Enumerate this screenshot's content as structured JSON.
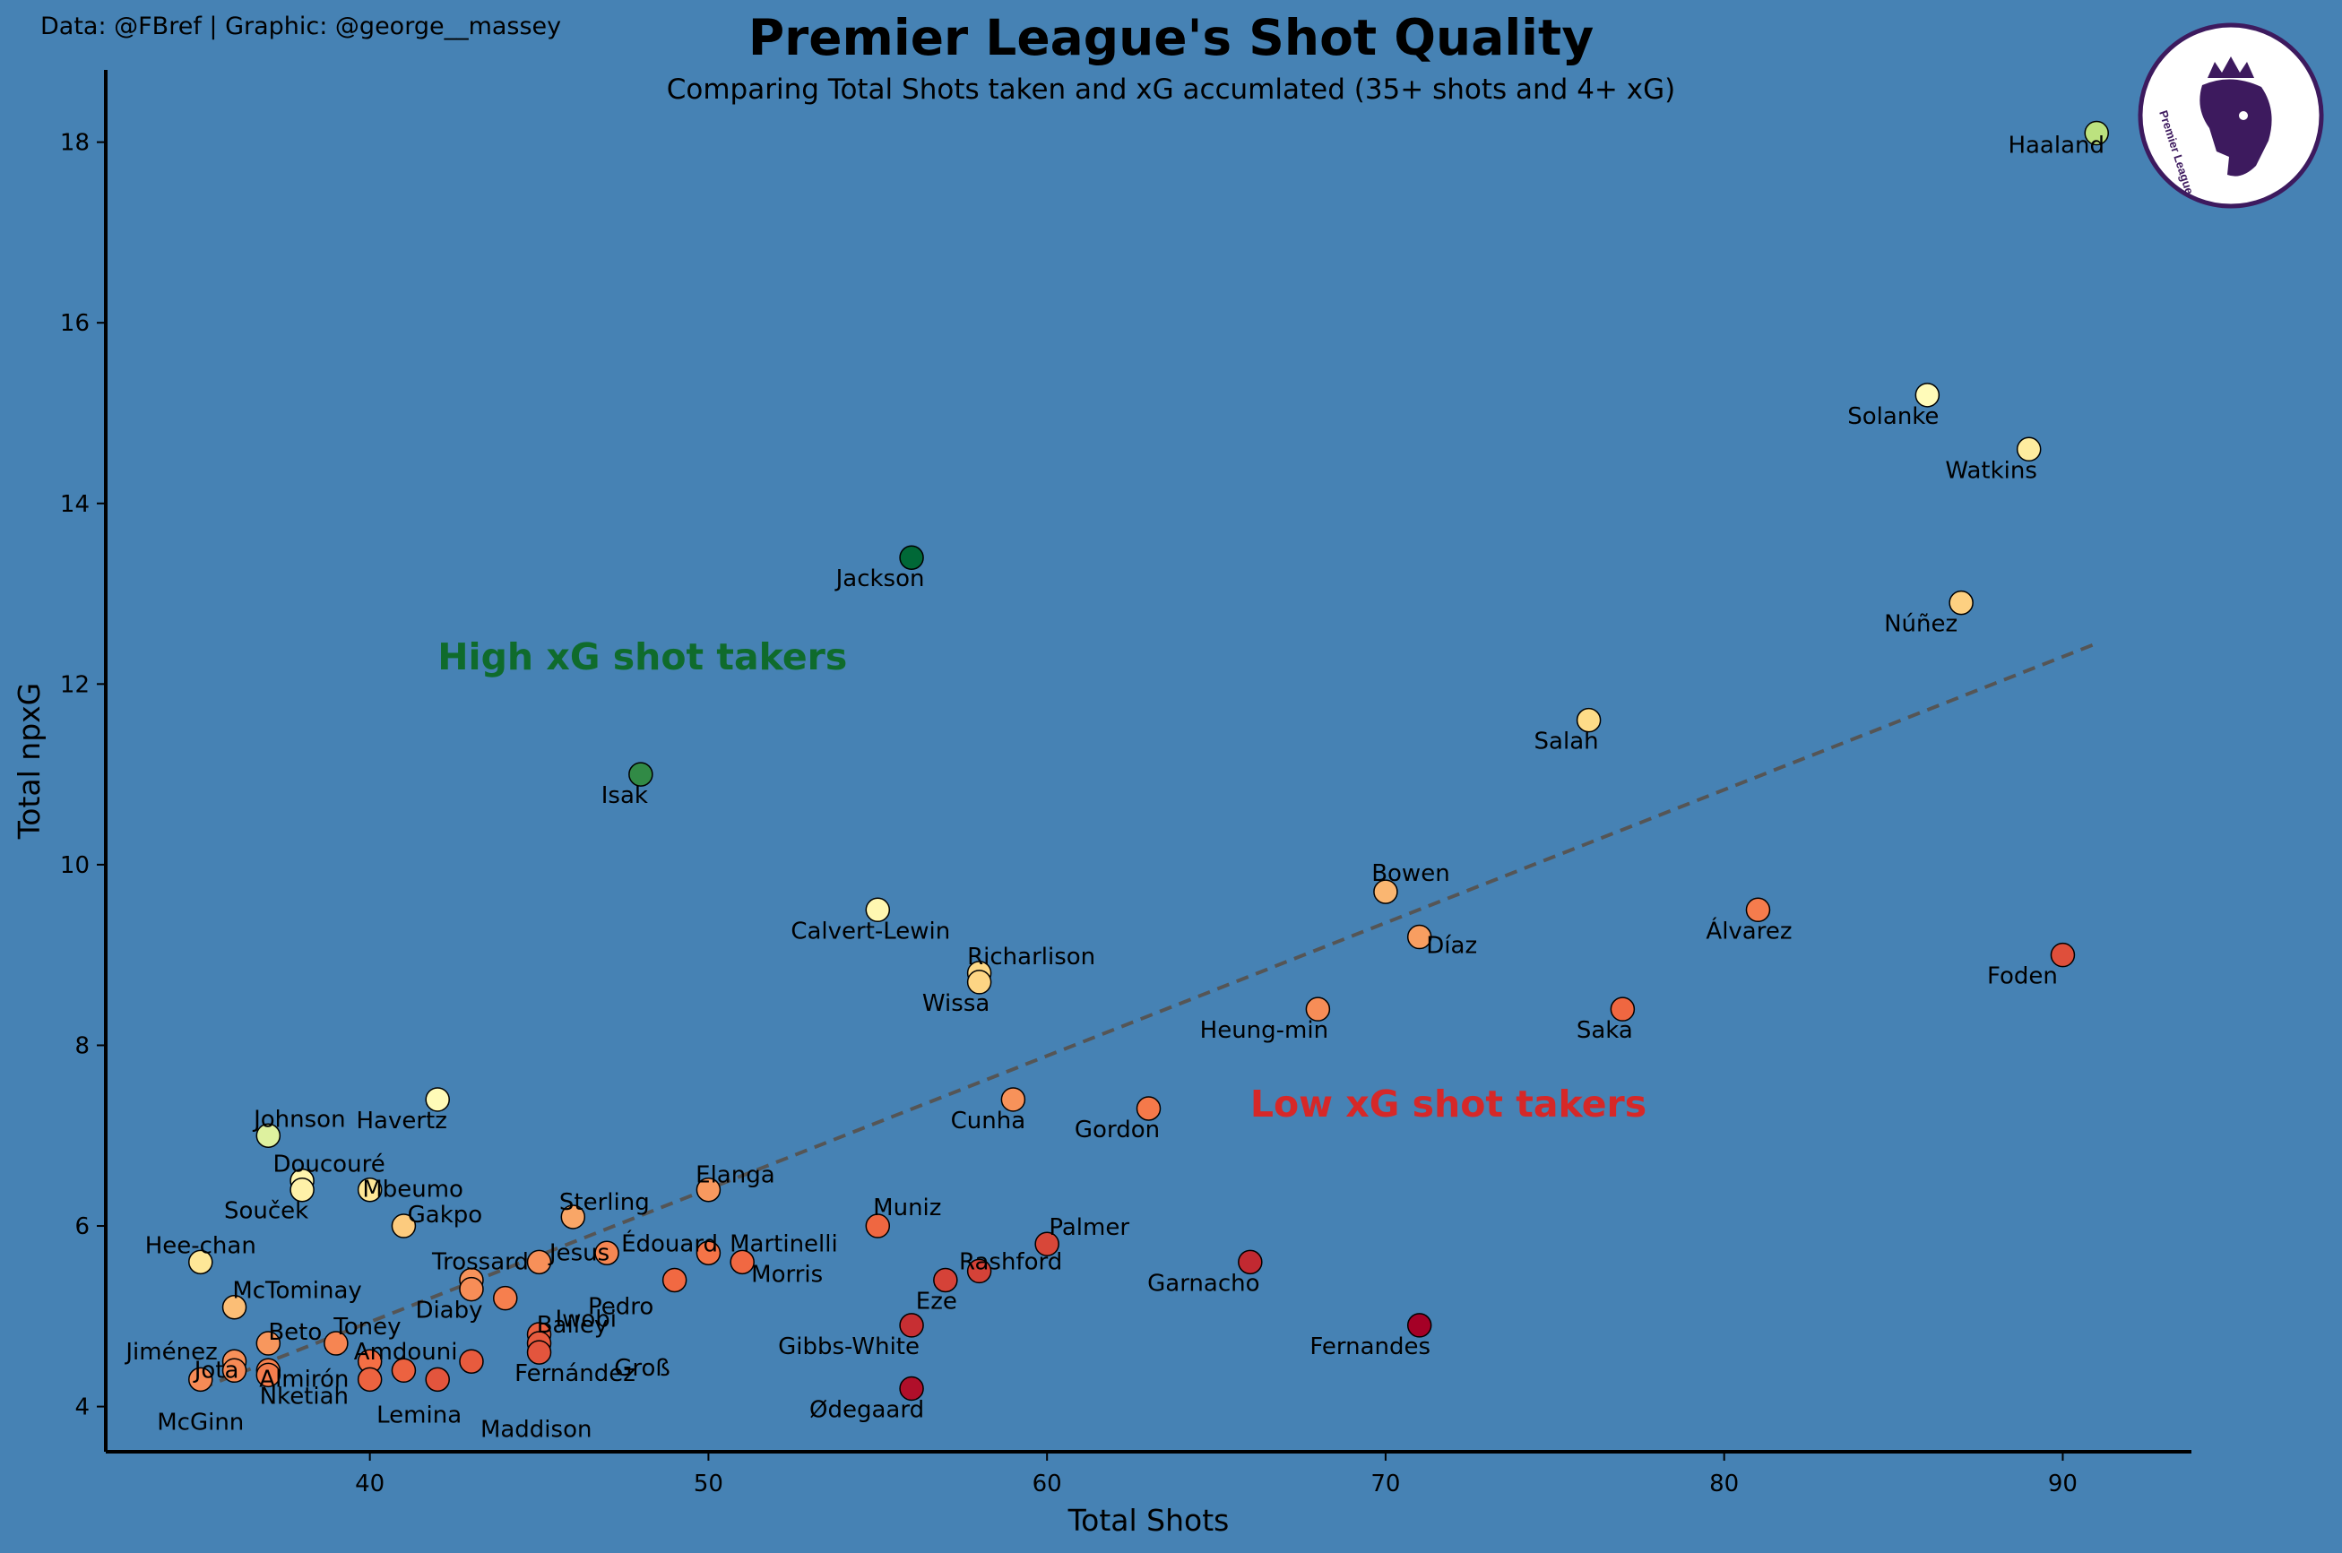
{
  "header": {
    "credit": "Data: @FBref | Graphic: @george__massey",
    "title": "Premier League's Shot Quality",
    "subtitle": "Comparing Total Shots taken and xG accumlated (35+ shots and 4+ xG)"
  },
  "logo": {
    "text": "Premier League",
    "icon": "premier-league-lion-logo-icon",
    "color": "#3d1a5e"
  },
  "colors": {
    "background": "#4682b4",
    "axis": "#000000",
    "trend": "#555555",
    "high_label": "#0f6b2c",
    "low_label": "#d62828"
  },
  "chart_data": {
    "type": "scatter",
    "xlabel": "Total Shots",
    "ylabel": "Total npxG",
    "xlim": [
      32.2,
      93.8
    ],
    "ylim": [
      3.5,
      18.8
    ],
    "xticks": [
      40,
      50,
      60,
      70,
      80,
      90
    ],
    "yticks": [
      4,
      6,
      8,
      10,
      12,
      14,
      16,
      18
    ],
    "grid": false,
    "color_scale": "RdYlGn by npxG per shot",
    "trend_line": {
      "x": [
        35,
        91
      ],
      "y": [
        4.2,
        12.45
      ]
    },
    "annotations": [
      {
        "text": "High xG shot takers",
        "x": 42,
        "y": 12.3
      },
      {
        "text": "Low xG shot takers",
        "x": 66,
        "y": 7.35
      }
    ],
    "points": [
      {
        "name": "Haaland",
        "x": 91,
        "y": 18.1
      },
      {
        "name": "Solanke",
        "x": 86,
        "y": 15.2
      },
      {
        "name": "Watkins",
        "x": 89,
        "y": 14.6
      },
      {
        "name": "Jackson",
        "x": 56,
        "y": 13.4
      },
      {
        "name": "Núñez",
        "x": 87,
        "y": 12.9
      },
      {
        "name": "Salah",
        "x": 76,
        "y": 11.6
      },
      {
        "name": "Isak",
        "x": 48,
        "y": 11.0
      },
      {
        "name": "Bowen",
        "x": 70,
        "y": 9.7
      },
      {
        "name": "Calvert-Lewin",
        "x": 55,
        "y": 9.5
      },
      {
        "name": "Álvarez",
        "x": 81,
        "y": 9.5
      },
      {
        "name": "Díaz",
        "x": 71,
        "y": 9.2
      },
      {
        "name": "Foden",
        "x": 90,
        "y": 9.0
      },
      {
        "name": "Richarlison",
        "x": 58,
        "y": 8.8
      },
      {
        "name": "Wissa",
        "x": 58,
        "y": 8.7
      },
      {
        "name": "Heung-min",
        "x": 68,
        "y": 8.4
      },
      {
        "name": "Saka",
        "x": 77,
        "y": 8.4
      },
      {
        "name": "Havertz",
        "x": 42,
        "y": 7.4
      },
      {
        "name": "Cunha",
        "x": 59,
        "y": 7.4
      },
      {
        "name": "Gordon",
        "x": 63,
        "y": 7.3
      },
      {
        "name": "Johnson",
        "x": 37,
        "y": 7.0
      },
      {
        "name": "Doucouré",
        "x": 38,
        "y": 6.5
      },
      {
        "name": "Souček",
        "x": 38,
        "y": 6.4
      },
      {
        "name": "Mbeumo",
        "x": 40,
        "y": 6.4
      },
      {
        "name": "Elanga",
        "x": 50,
        "y": 6.4
      },
      {
        "name": "Sterling",
        "x": 46,
        "y": 6.1
      },
      {
        "name": "Gakpo",
        "x": 41,
        "y": 6.0
      },
      {
        "name": "Muniz",
        "x": 55,
        "y": 6.0
      },
      {
        "name": "Palmer",
        "x": 60,
        "y": 5.8
      },
      {
        "name": "Édouard",
        "x": 47,
        "y": 5.7
      },
      {
        "name": "Martinelli",
        "x": 50,
        "y": 5.7
      },
      {
        "name": "Hee-chan",
        "x": 35,
        "y": 5.6
      },
      {
        "name": "Jesus",
        "x": 45,
        "y": 5.6
      },
      {
        "name": "Morris",
        "x": 51,
        "y": 5.6
      },
      {
        "name": "Garnacho",
        "x": 66,
        "y": 5.6
      },
      {
        "name": "Rashford",
        "x": 58,
        "y": 5.5
      },
      {
        "name": "Trossard",
        "x": 43,
        "y": 5.4
      },
      {
        "name": "Pedro",
        "x": 49,
        "y": 5.4
      },
      {
        "name": "Eze",
        "x": 57,
        "y": 5.4
      },
      {
        "name": "Diaby",
        "x": 43,
        "y": 5.3
      },
      {
        "name": "Iwobi",
        "x": 44,
        "y": 5.2
      },
      {
        "name": "McTominay",
        "x": 36,
        "y": 5.1
      },
      {
        "name": "Gibbs-White",
        "x": 56,
        "y": 4.9
      },
      {
        "name": "Fernandes",
        "x": 71,
        "y": 4.9
      },
      {
        "name": "Bailey",
        "x": 45,
        "y": 4.8
      },
      {
        "name": "Toney",
        "x": 39,
        "y": 4.7
      },
      {
        "name": "Beto",
        "x": 37,
        "y": 4.7
      },
      {
        "name": "Groß",
        "x": 45,
        "y": 4.7
      },
      {
        "name": "Fernández",
        "x": 45,
        "y": 4.6
      },
      {
        "name": "Jiménez",
        "x": 36,
        "y": 4.5
      },
      {
        "name": "Amdouni",
        "x": 40,
        "y": 4.5
      },
      {
        "name": "Maddison",
        "x": 43,
        "y": 4.5
      },
      {
        "name": "Almirón",
        "x": 37,
        "y": 4.4
      },
      {
        "name": "Jota",
        "x": 36,
        "y": 4.4
      },
      {
        "name": "Lemina",
        "x": 41,
        "y": 4.4
      },
      {
        "name": "Nketiah",
        "x": 37,
        "y": 4.35
      },
      {
        "name": "McGinn",
        "x": 35,
        "y": 4.3
      },
      {
        "name": "Lemina2",
        "x": 40,
        "y": 4.3
      },
      {
        "name": "Maddison2",
        "x": 42,
        "y": 4.3
      },
      {
        "name": "Ødegaard",
        "x": 56,
        "y": 4.2
      }
    ]
  }
}
